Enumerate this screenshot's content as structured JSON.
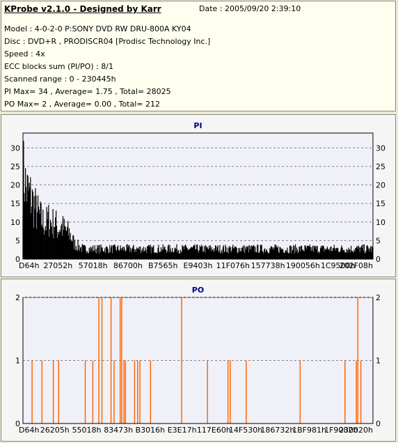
{
  "header": {
    "title": "KProbe v2.1.0 - Designed by Karr",
    "date": "Date : 2005/09/20 2:39:10",
    "lines": [
      "Model : 4-0-2-0 P:SONY    DVD RW DRU-800A  KY04",
      "Disc : DVD+R , PRODISCR04 [Prodisc Technology Inc.]",
      "Speed : 4x",
      "ECC blocks sum (PI/PO) : 8/1",
      "Scanned range : 0 - 230445h",
      "PI Max= 34 , Average= 1.75 , Total= 28025",
      "PO Max= 2 , Average= 0.00 , Total= 212"
    ]
  },
  "colors": {
    "pi_bar": "#000000",
    "po_bar": "#FF6600",
    "grid": "#808080",
    "title": "#000080",
    "plot_bg": "#F0F0F8"
  },
  "chart_data": [
    {
      "type": "bar",
      "title": "PI",
      "ylim": [
        0,
        34
      ],
      "yticks": [
        0,
        5,
        10,
        15,
        20,
        25,
        30
      ],
      "xlim": [
        0,
        230445
      ],
      "xticks": [
        "D64h",
        "27052h",
        "57018h",
        "86700h",
        "B7565h",
        "E9403h",
        "11F076h",
        "157738h",
        "190056h",
        "1C9500h",
        "202F08h"
      ],
      "grid": true,
      "envelope": {
        "x": [
          0,
          1000,
          2000,
          3000,
          5000,
          7000,
          9000,
          11000,
          13000,
          15000,
          17000,
          19000,
          21000,
          23000,
          25000,
          27000,
          29000,
          31000,
          34000,
          37000,
          40000,
          60000,
          100000,
          150000,
          200000,
          230445
        ],
        "y": [
          34,
          33,
          28,
          27,
          25,
          22,
          19,
          17,
          15,
          14,
          16,
          14,
          15,
          12,
          13,
          12,
          11,
          10,
          6,
          5,
          4,
          4,
          4,
          4,
          4,
          4
        ]
      }
    },
    {
      "type": "bar",
      "title": "PO",
      "ylim": [
        0,
        2
      ],
      "yticks": [
        0,
        1,
        2
      ],
      "xlim": [
        0,
        230445
      ],
      "xticks": [
        "D64h",
        "26205h",
        "55018h",
        "83473h",
        "B3016h",
        "E3E17h",
        "117E60h",
        "14F530h",
        "186732h",
        "1BF981h",
        "1F9002h",
        "230020h"
      ],
      "grid": true,
      "values_at": [
        {
          "x": 6000,
          "y": 1
        },
        {
          "x": 12500,
          "y": 1
        },
        {
          "x": 20000,
          "y": 1
        },
        {
          "x": 23500,
          "y": 1
        },
        {
          "x": 41000,
          "y": 1
        },
        {
          "x": 46000,
          "y": 1
        },
        {
          "x": 50000,
          "y": 2
        },
        {
          "x": 52000,
          "y": 2
        },
        {
          "x": 58000,
          "y": 2
        },
        {
          "x": 60000,
          "y": 1
        },
        {
          "x": 64000,
          "y": 2
        },
        {
          "x": 65000,
          "y": 2
        },
        {
          "x": 66500,
          "y": 1
        },
        {
          "x": 67500,
          "y": 1
        },
        {
          "x": 73500,
          "y": 1
        },
        {
          "x": 75500,
          "y": 1
        },
        {
          "x": 77000,
          "y": 1
        },
        {
          "x": 84000,
          "y": 1
        },
        {
          "x": 104500,
          "y": 2
        },
        {
          "x": 121500,
          "y": 1
        },
        {
          "x": 135000,
          "y": 1
        },
        {
          "x": 136500,
          "y": 1
        },
        {
          "x": 147000,
          "y": 1
        },
        {
          "x": 182500,
          "y": 1
        },
        {
          "x": 212000,
          "y": 1
        },
        {
          "x": 219500,
          "y": 1
        },
        {
          "x": 220500,
          "y": 2
        },
        {
          "x": 222500,
          "y": 1
        }
      ]
    }
  ]
}
